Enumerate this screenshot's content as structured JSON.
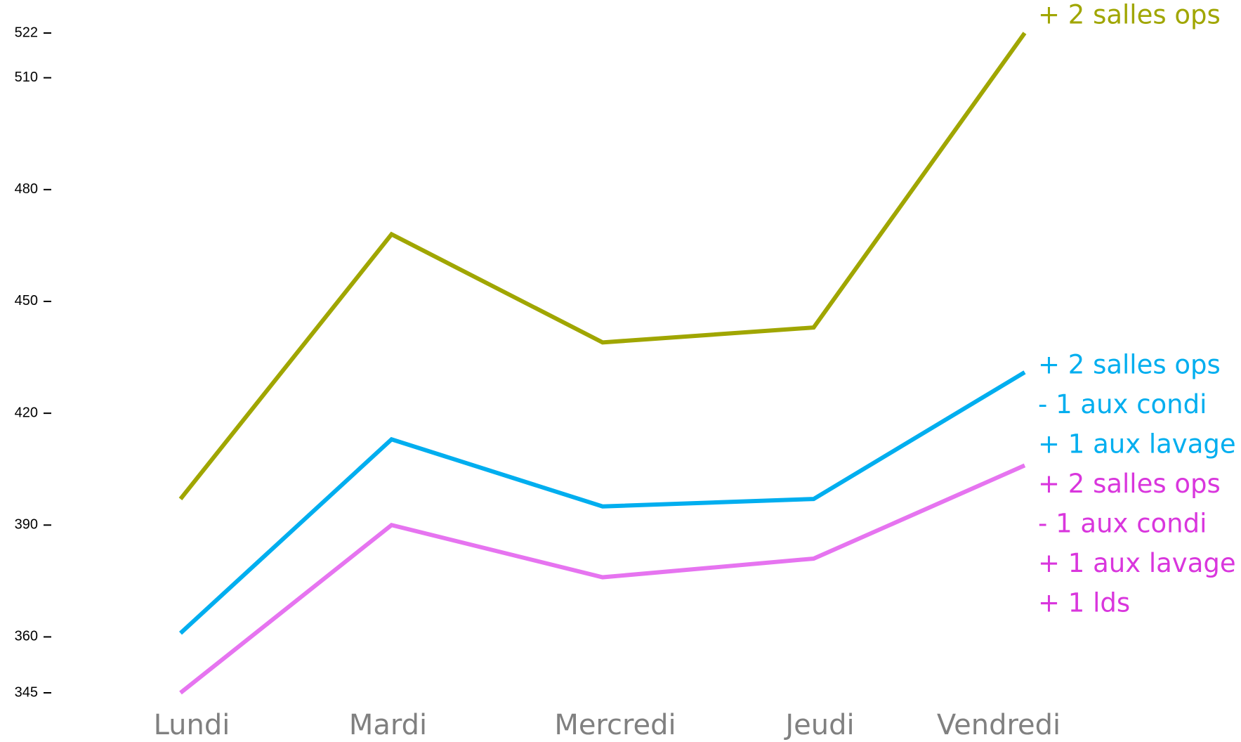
{
  "chart_data": {
    "type": "line",
    "categories": [
      "Lundi",
      "Mardi",
      "Mercredi",
      "Jeudi",
      "Vendredi"
    ],
    "series": [
      {
        "color": "#a0a600",
        "label_color": "#a0a600",
        "values": [
          397,
          468,
          439,
          443,
          522
        ],
        "annotation": [
          "+ 2 salles ops"
        ]
      },
      {
        "color": "#00aeef",
        "label_color": "#00aeef",
        "values": [
          361,
          413,
          395,
          397,
          431
        ],
        "annotation": [
          "+ 2 salles ops",
          "- 1 aux condi",
          "+ 1 aux lavage"
        ]
      },
      {
        "color": "#e674f0",
        "label_color": "#d936dd",
        "values": [
          345,
          390,
          376,
          381,
          406
        ],
        "annotation": [
          "+ 2 salles ops",
          "- 1 aux condi",
          "+ 1 aux lavage",
          "+ 1 lds"
        ]
      }
    ],
    "ylim": [
      345,
      522
    ],
    "yticks": [
      345,
      360,
      390,
      420,
      450,
      480,
      510,
      522
    ],
    "grid": false
  }
}
